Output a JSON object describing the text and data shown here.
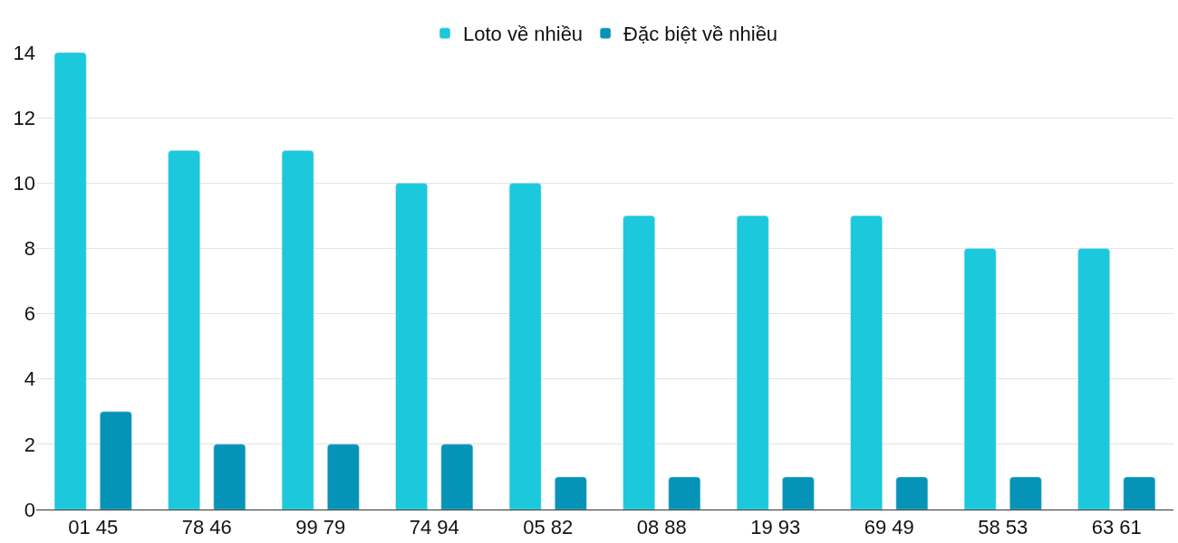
{
  "chart_data": {
    "type": "bar",
    "categories": [
      "01 45",
      "78 46",
      "99 79",
      "74 94",
      "05 82",
      "08 88",
      "19 93",
      "69 49",
      "58 53",
      "63 61"
    ],
    "series": [
      {
        "name": "Loto về nhiều",
        "color": "#1bc8dc",
        "values": [
          14,
          11,
          11,
          10,
          10,
          9,
          9,
          9,
          8,
          8
        ]
      },
      {
        "name": "Đặc biệt về nhiều",
        "color": "#0693b8",
        "values": [
          3,
          2,
          2,
          2,
          1,
          1,
          1,
          1,
          1,
          1
        ]
      }
    ],
    "ylim": [
      0,
      14
    ],
    "yticks": [
      0,
      2,
      4,
      6,
      8,
      10,
      12,
      14
    ],
    "grid": "y",
    "legend": "top"
  }
}
